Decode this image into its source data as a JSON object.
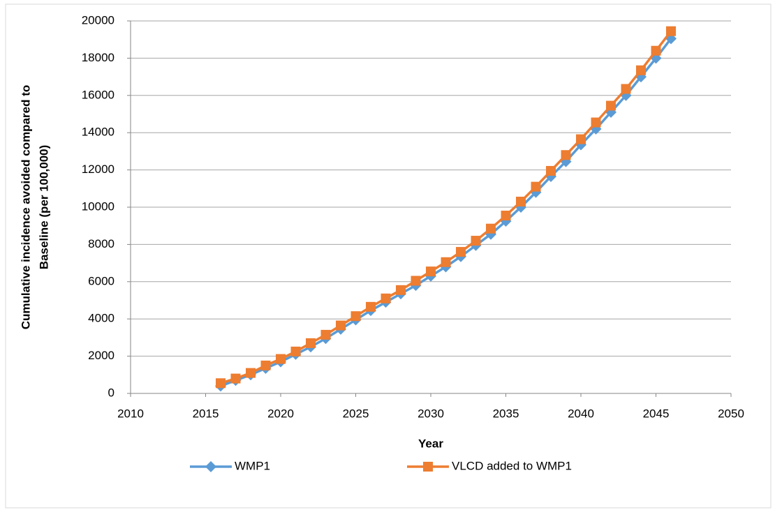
{
  "chart_data": {
    "type": "line",
    "y_label": [
      "Cumulative incidence avoided compared to",
      "Baseline (per 100,000)"
    ],
    "x_label": "Year",
    "x": [
      2016,
      2017,
      2018,
      2019,
      2020,
      2021,
      2022,
      2023,
      2024,
      2025,
      2026,
      2027,
      2028,
      2029,
      2030,
      2031,
      2032,
      2033,
      2034,
      2035,
      2036,
      2037,
      2038,
      2039,
      2040,
      2041,
      2042,
      2043,
      2044,
      2045,
      2046
    ],
    "series": [
      {
        "name": "WMP1",
        "color": "#5b9bd5",
        "marker": "diamond",
        "values": [
          400,
          700,
          1000,
          1350,
          1700,
          2100,
          2500,
          2950,
          3450,
          3950,
          4450,
          4900,
          5350,
          5800,
          6300,
          6800,
          7350,
          7950,
          8550,
          9250,
          10000,
          10800,
          11650,
          12450,
          13350,
          14200,
          15100,
          16000,
          17000,
          18000,
          19050
        ]
      },
      {
        "name": "VLCD added to WMP1",
        "color": "#ed7d31",
        "marker": "square",
        "values": [
          550,
          800,
          1100,
          1500,
          1850,
          2250,
          2700,
          3150,
          3650,
          4150,
          4650,
          5100,
          5550,
          6050,
          6550,
          7050,
          7600,
          8200,
          8850,
          9550,
          10300,
          11100,
          11950,
          12800,
          13650,
          14550,
          15450,
          16350,
          17350,
          18400,
          19450
        ]
      }
    ],
    "xlim": [
      2010,
      2050
    ],
    "xticks": [
      2010,
      2015,
      2020,
      2025,
      2030,
      2035,
      2040,
      2045,
      2050
    ],
    "ylim": [
      0,
      20000
    ],
    "yticks": [
      0,
      2000,
      4000,
      6000,
      8000,
      10000,
      12000,
      14000,
      16000,
      18000,
      20000
    ],
    "grid": true,
    "legend": "bottom"
  }
}
